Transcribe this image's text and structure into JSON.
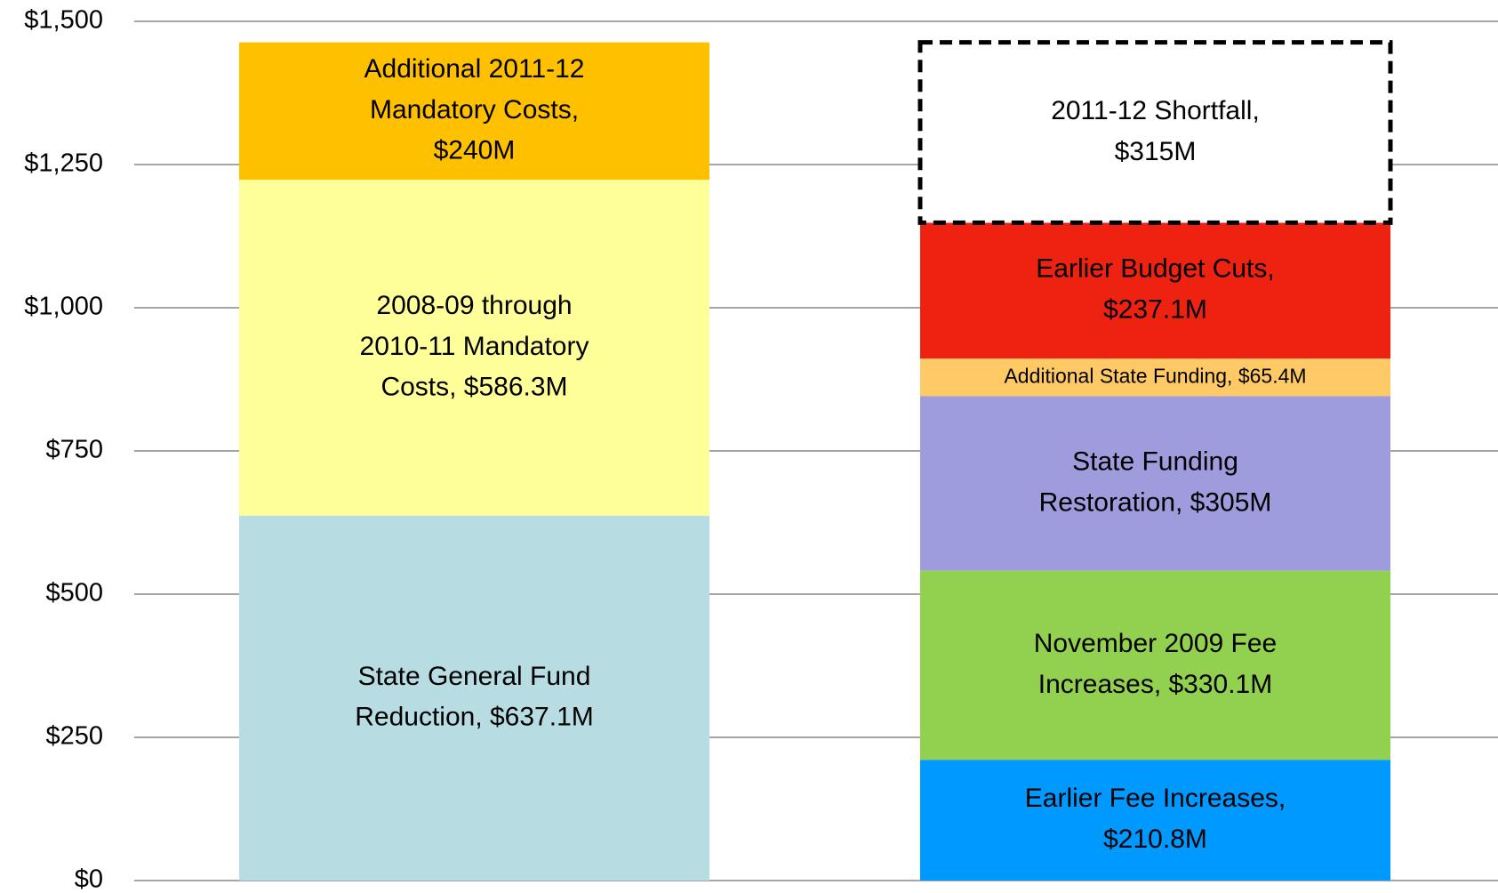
{
  "chart_data": {
    "type": "stacked_bar",
    "ylim": [
      0,
      1500
    ],
    "yticks": [
      {
        "value": 0,
        "label": "$0"
      },
      {
        "value": 250,
        "label": "$250"
      },
      {
        "value": 500,
        "label": "$500"
      },
      {
        "value": 750,
        "label": "$750"
      },
      {
        "value": 1000,
        "label": "$1,000"
      },
      {
        "value": 1250,
        "label": "$1,250"
      },
      {
        "value": 1500,
        "label": "$1,500"
      }
    ],
    "grid": true,
    "stacks": [
      [
        {
          "lines": [
            "State General Fund",
            "Reduction, $637.1M"
          ],
          "value": 637.1,
          "color": "#b7dde2"
        },
        {
          "lines": [
            "2008-09 through",
            "2010-11 Mandatory",
            "Costs, $586.3M"
          ],
          "value": 586.3,
          "color": "#ffff99"
        },
        {
          "lines": [
            "Additional 2011-12",
            "Mandatory Costs,",
            "$240M"
          ],
          "value": 240,
          "color": "#ffc000"
        }
      ],
      [
        {
          "lines": [
            "Earlier Fee Increases,",
            "$210.8M"
          ],
          "value": 210.8,
          "color": "#0099ff"
        },
        {
          "lines": [
            "November 2009 Fee",
            "Increases, $330.1M"
          ],
          "value": 330.1,
          "color": "#92d050"
        },
        {
          "lines": [
            "State Funding",
            "Restoration, $305M"
          ],
          "value": 305,
          "color": "#9e9cdc"
        },
        {
          "lines": [
            "Additional State Funding, $65.4M"
          ],
          "value": 65.4,
          "color": "#ffc966",
          "small": true
        },
        {
          "lines": [
            "Earlier Budget Cuts,",
            "$237.1M"
          ],
          "value": 237.1,
          "color": "#ee2211"
        },
        {
          "lines": [
            "2011-12 Shortfall,",
            "$315M"
          ],
          "value": 315,
          "color": "#ffffff",
          "dashed": true
        }
      ]
    ]
  }
}
